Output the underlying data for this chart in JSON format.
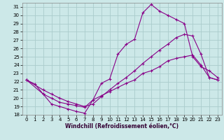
{
  "xlabel": "Windchill (Refroidissement éolien,°C)",
  "xlim": [
    -0.5,
    23.5
  ],
  "ylim": [
    18,
    31.5
  ],
  "xticks": [
    0,
    1,
    2,
    3,
    4,
    5,
    6,
    7,
    8,
    9,
    10,
    11,
    12,
    13,
    14,
    15,
    16,
    17,
    18,
    19,
    20,
    21,
    22,
    23
  ],
  "yticks": [
    18,
    19,
    20,
    21,
    22,
    23,
    24,
    25,
    26,
    27,
    28,
    29,
    30,
    31
  ],
  "bg_color": "#cce8e8",
  "grid_color": "#aacccc",
  "line_color": "#880088",
  "line1_x": [
    0,
    1,
    2,
    3,
    4,
    5,
    6,
    7,
    8,
    9,
    10,
    11,
    12,
    13,
    14,
    15,
    16,
    17,
    18,
    19,
    20,
    21,
    22,
    23
  ],
  "line1_y": [
    22.2,
    21.7,
    20.5,
    19.3,
    19.0,
    18.7,
    18.4,
    18.2,
    19.8,
    21.8,
    22.3,
    25.3,
    26.5,
    27.1,
    30.3,
    31.3,
    30.5,
    30.0,
    29.5,
    29.0,
    25.0,
    23.8,
    23.3,
    22.5
  ],
  "line2_x": [
    0,
    2,
    3,
    4,
    5,
    6,
    7,
    8,
    9,
    10,
    11,
    12,
    13,
    14,
    15,
    16,
    17,
    18,
    19,
    20,
    21,
    22,
    23
  ],
  "line2_y": [
    22.2,
    21.0,
    20.5,
    20.0,
    19.6,
    19.3,
    19.0,
    19.3,
    20.2,
    21.0,
    21.8,
    22.5,
    23.3,
    24.2,
    25.0,
    25.8,
    26.5,
    27.3,
    27.7,
    27.5,
    25.3,
    22.5,
    22.2
  ],
  "line3_x": [
    0,
    2,
    3,
    4,
    5,
    6,
    7,
    8,
    9,
    10,
    11,
    12,
    13,
    14,
    15,
    16,
    17,
    18,
    19,
    20,
    21,
    22,
    23
  ],
  "line3_y": [
    22.2,
    20.5,
    20.0,
    19.5,
    19.3,
    19.1,
    18.9,
    19.8,
    20.3,
    20.8,
    21.3,
    21.8,
    22.2,
    23.0,
    23.3,
    23.8,
    24.5,
    24.8,
    25.0,
    25.2,
    24.0,
    22.5,
    22.2
  ]
}
